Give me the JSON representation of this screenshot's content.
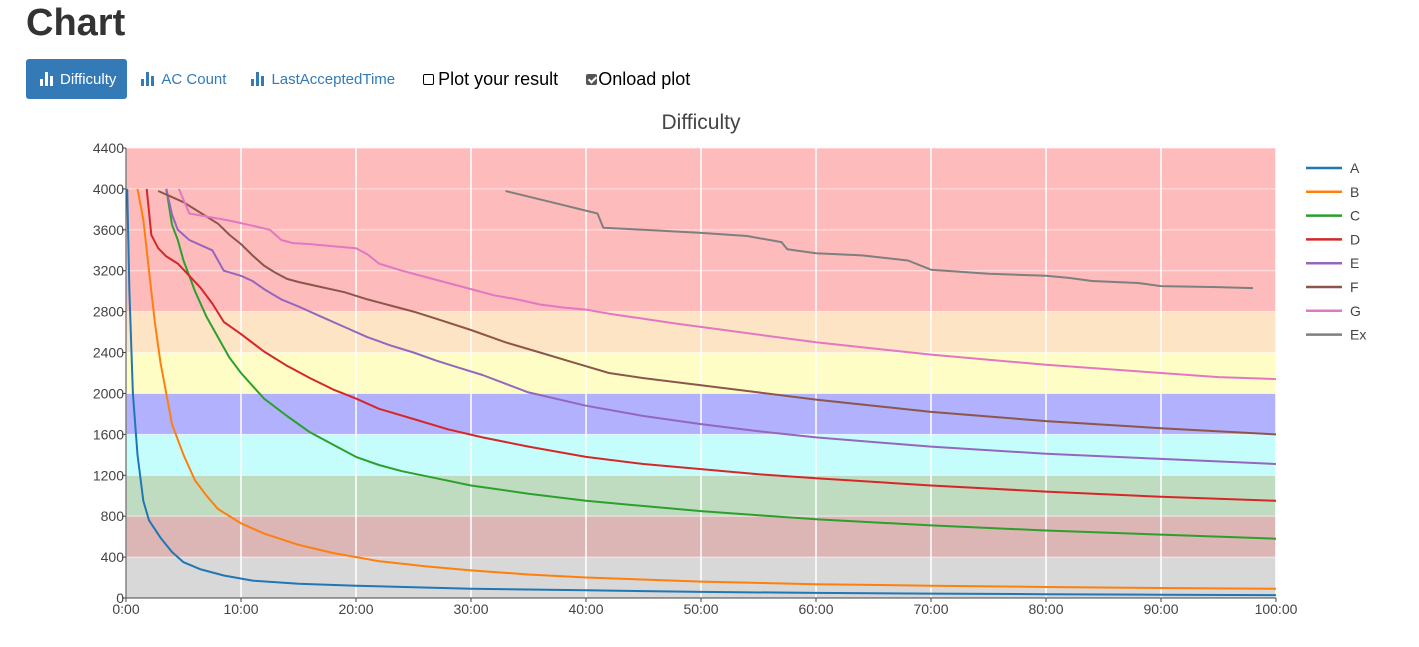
{
  "page": {
    "title": "Chart"
  },
  "toolbar": {
    "buttons": [
      {
        "label": "Difficulty",
        "active": true
      },
      {
        "label": "AC Count",
        "active": false
      },
      {
        "label": "LastAcceptedTime",
        "active": false
      }
    ],
    "plot_result": {
      "label": "Plot your result",
      "checked": false
    },
    "onload_plot": {
      "label": "Onload plot",
      "checked": true
    }
  },
  "colors": {
    "accent": "#337ab7"
  },
  "chart_data": {
    "type": "line",
    "title": "Difficulty",
    "xlabel": "",
    "ylabel": "",
    "xlim": [
      0,
      100
    ],
    "ylim": [
      0,
      4400
    ],
    "x_unit": "minutes",
    "x_ticks": [
      {
        "v": 0,
        "label": "0:00"
      },
      {
        "v": 10,
        "label": "10:00"
      },
      {
        "v": 20,
        "label": "20:00"
      },
      {
        "v": 30,
        "label": "30:00"
      },
      {
        "v": 40,
        "label": "40:00"
      },
      {
        "v": 50,
        "label": "50:00"
      },
      {
        "v": 60,
        "label": "60:00"
      },
      {
        "v": 70,
        "label": "70:00"
      },
      {
        "v": 80,
        "label": "80:00"
      },
      {
        "v": 90,
        "label": "90:00"
      },
      {
        "v": 100,
        "label": "100:00"
      }
    ],
    "y_ticks": [
      0,
      400,
      800,
      1200,
      1600,
      2000,
      2400,
      2800,
      3200,
      3600,
      4000,
      4400
    ],
    "grid": true,
    "legend": "right",
    "background_bands": [
      {
        "from": 0,
        "to": 400,
        "color": "#d8d8d8"
      },
      {
        "from": 400,
        "to": 800,
        "color": "#dcb5b5"
      },
      {
        "from": 800,
        "to": 1200,
        "color": "#c0dcc0"
      },
      {
        "from": 1200,
        "to": 1600,
        "color": "#c5fdfd"
      },
      {
        "from": 1600,
        "to": 2000,
        "color": "#b1b1fd"
      },
      {
        "from": 2000,
        "to": 2400,
        "color": "#fdfdc5"
      },
      {
        "from": 2400,
        "to": 2800,
        "color": "#fde4c5"
      },
      {
        "from": 2800,
        "to": 4400,
        "color": "#fdbbbb"
      }
    ],
    "series": [
      {
        "name": "A",
        "color": "#1f77b4",
        "x": [
          0.1,
          0.3,
          0.6,
          1,
          1.5,
          2,
          3,
          4,
          5,
          6.5,
          8.5,
          11,
          15,
          20,
          30,
          40,
          50,
          60,
          70,
          80,
          90,
          100
        ],
        "y": [
          4000,
          3000,
          2000,
          1400,
          950,
          760,
          590,
          450,
          350,
          280,
          220,
          170,
          140,
          120,
          90,
          75,
          60,
          50,
          43,
          37,
          32,
          28
        ]
      },
      {
        "name": "B",
        "color": "#ff7f0e",
        "x": [
          1,
          1.5,
          2,
          2.5,
          3,
          3.5,
          4,
          5,
          6,
          7,
          8,
          10,
          12,
          15,
          18,
          22,
          26,
          30,
          35,
          40,
          50,
          60,
          70,
          80,
          90,
          100
        ],
        "y": [
          4000,
          3700,
          3200,
          2700,
          2300,
          2000,
          1700,
          1400,
          1150,
          1000,
          870,
          730,
          630,
          520,
          440,
          360,
          310,
          270,
          230,
          200,
          160,
          135,
          120,
          108,
          98,
          90
        ]
      },
      {
        "name": "C",
        "color": "#2ca02c",
        "x": [
          3.5,
          4,
          4.5,
          5,
          6,
          7,
          8,
          9,
          10,
          12,
          14,
          16,
          18,
          20,
          22,
          24,
          27,
          30,
          35,
          40,
          45,
          50,
          55,
          60,
          70,
          80,
          90,
          100
        ],
        "y": [
          4000,
          3650,
          3500,
          3300,
          3000,
          2750,
          2550,
          2350,
          2200,
          1950,
          1780,
          1620,
          1500,
          1380,
          1300,
          1240,
          1170,
          1100,
          1020,
          950,
          900,
          850,
          810,
          770,
          710,
          660,
          620,
          580
        ]
      },
      {
        "name": "D",
        "color": "#d62728",
        "x": [
          1.8,
          2.2,
          2.8,
          3.5,
          4.5,
          5.5,
          6.5,
          7.5,
          8.5,
          10,
          12,
          14,
          16,
          18,
          20,
          22,
          25,
          28,
          31,
          35,
          40,
          45,
          50,
          55,
          60,
          70,
          80,
          90,
          100
        ],
        "y": [
          4000,
          3550,
          3420,
          3340,
          3270,
          3150,
          3030,
          2880,
          2700,
          2580,
          2410,
          2270,
          2150,
          2040,
          1950,
          1850,
          1750,
          1650,
          1570,
          1480,
          1380,
          1310,
          1260,
          1210,
          1170,
          1100,
          1040,
          990,
          950
        ]
      },
      {
        "name": "E",
        "color": "#9467bd",
        "x": [
          3.5,
          4,
          4.5,
          5.5,
          6.5,
          7.5,
          8.5,
          10,
          11,
          12,
          13.5,
          15,
          17,
          19,
          21,
          23,
          25,
          27,
          29,
          31,
          35,
          40,
          45,
          50,
          55,
          60,
          70,
          80,
          90,
          100
        ],
        "y": [
          4000,
          3750,
          3600,
          3500,
          3450,
          3400,
          3200,
          3150,
          3100,
          3020,
          2920,
          2850,
          2750,
          2650,
          2550,
          2470,
          2400,
          2320,
          2250,
          2180,
          2010,
          1880,
          1780,
          1700,
          1630,
          1570,
          1480,
          1410,
          1360,
          1310
        ]
      },
      {
        "name": "F",
        "color": "#8c564b",
        "x": [
          2.8,
          4,
          5,
          6,
          7,
          8,
          9,
          10,
          11,
          12,
          13,
          14,
          15,
          17,
          19,
          21,
          23,
          25,
          27,
          30,
          33,
          36,
          39,
          42,
          45,
          50,
          55,
          60,
          65,
          70,
          80,
          90,
          100
        ],
        "y": [
          3980,
          3920,
          3870,
          3800,
          3730,
          3660,
          3550,
          3460,
          3350,
          3250,
          3180,
          3120,
          3090,
          3040,
          2990,
          2920,
          2860,
          2800,
          2730,
          2620,
          2500,
          2400,
          2300,
          2200,
          2150,
          2080,
          2010,
          1940,
          1880,
          1820,
          1730,
          1660,
          1600
        ]
      },
      {
        "name": "G",
        "color": "#e377c2",
        "x": [
          4.6,
          5.5,
          7,
          9,
          11,
          12.5,
          13.5,
          14.5,
          16,
          18,
          20,
          21,
          22,
          24,
          26,
          28,
          30,
          32,
          34,
          36,
          38,
          40,
          42,
          45,
          48,
          52,
          56,
          60,
          65,
          70,
          75,
          80,
          85,
          90,
          95,
          100
        ],
        "y": [
          4000,
          3760,
          3730,
          3690,
          3640,
          3600,
          3500,
          3470,
          3460,
          3440,
          3420,
          3360,
          3270,
          3200,
          3140,
          3080,
          3020,
          2960,
          2920,
          2870,
          2840,
          2820,
          2780,
          2730,
          2680,
          2620,
          2560,
          2500,
          2440,
          2380,
          2330,
          2280,
          2240,
          2200,
          2160,
          2140
        ]
      },
      {
        "name": "Ex",
        "color": "#7f7f7f",
        "x": [
          33,
          37,
          41,
          41.5,
          45,
          50,
          54,
          57,
          57.5,
          60,
          64,
          68,
          70,
          75,
          80,
          82,
          84,
          88,
          90,
          95,
          98
        ],
        "y": [
          3980,
          3870,
          3760,
          3620,
          3600,
          3570,
          3540,
          3480,
          3410,
          3370,
          3350,
          3300,
          3210,
          3170,
          3150,
          3130,
          3100,
          3080,
          3050,
          3040,
          3030
        ]
      }
    ]
  }
}
